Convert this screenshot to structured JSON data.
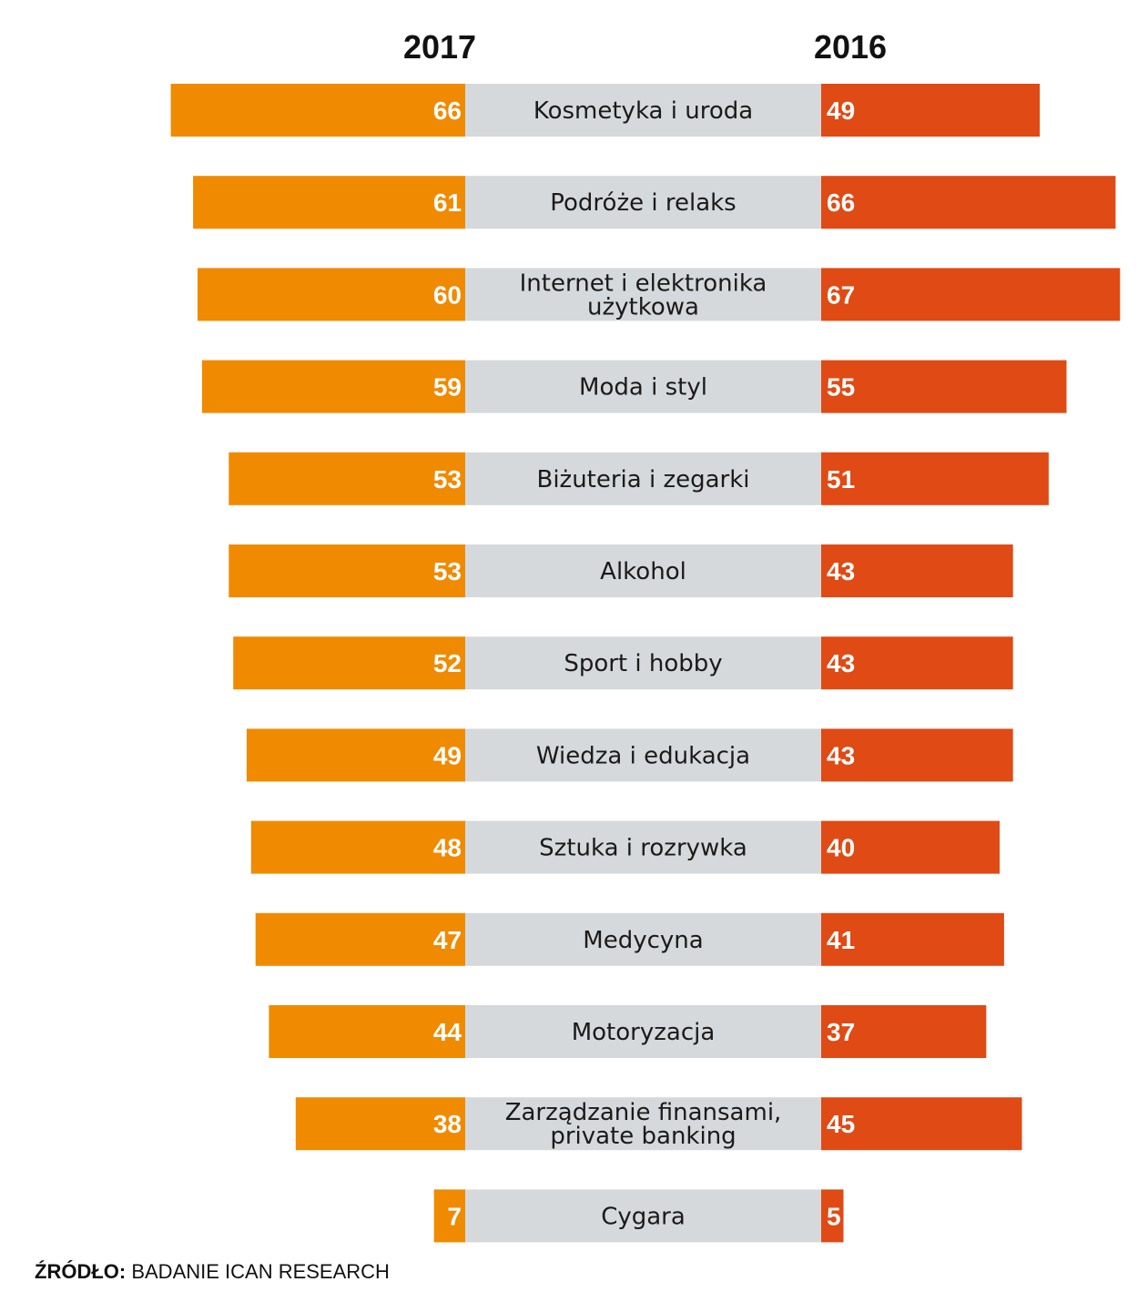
{
  "chart_data": {
    "type": "bar",
    "categories": [
      "Kosmetyka i uroda",
      "Podróże i relaks",
      "Internet i elektronika użytkowa",
      "Moda i styl",
      "Biżuteria i zegarki",
      "Alkohol",
      "Sport i hobby",
      "Wiedza i edukacja",
      "Sztuka i rozrywka",
      "Medycyna",
      "Motoryzacja",
      "Zarządzanie finansami, private banking",
      "Cygara"
    ],
    "category_lines": [
      [
        "Kosmetyka i uroda"
      ],
      [
        "Podróże i relaks"
      ],
      [
        "Internet i elektronika",
        "użytkowa"
      ],
      [
        "Moda i styl"
      ],
      [
        "Biżuteria i zegarki"
      ],
      [
        "Alkohol"
      ],
      [
        "Sport i hobby"
      ],
      [
        "Wiedza i edukacja"
      ],
      [
        "Sztuka i rozrywka"
      ],
      [
        "Medycyna"
      ],
      [
        "Motoryzacja"
      ],
      [
        "Zarządzanie finansami,",
        "private banking"
      ],
      [
        "Cygara"
      ]
    ],
    "series": [
      {
        "name": "2017",
        "values": [
          66,
          61,
          60,
          59,
          53,
          53,
          52,
          49,
          48,
          47,
          44,
          38,
          7
        ],
        "color": "#f08a00"
      },
      {
        "name": "2016",
        "values": [
          49,
          66,
          67,
          55,
          51,
          43,
          43,
          43,
          40,
          41,
          37,
          45,
          5
        ],
        "color": "#e04a14"
      }
    ],
    "center_band_color": "#d5d9dc"
  },
  "source": {
    "label": "ŹRÓDŁO:",
    "text": "BADANIE ICAN RESEARCH"
  }
}
